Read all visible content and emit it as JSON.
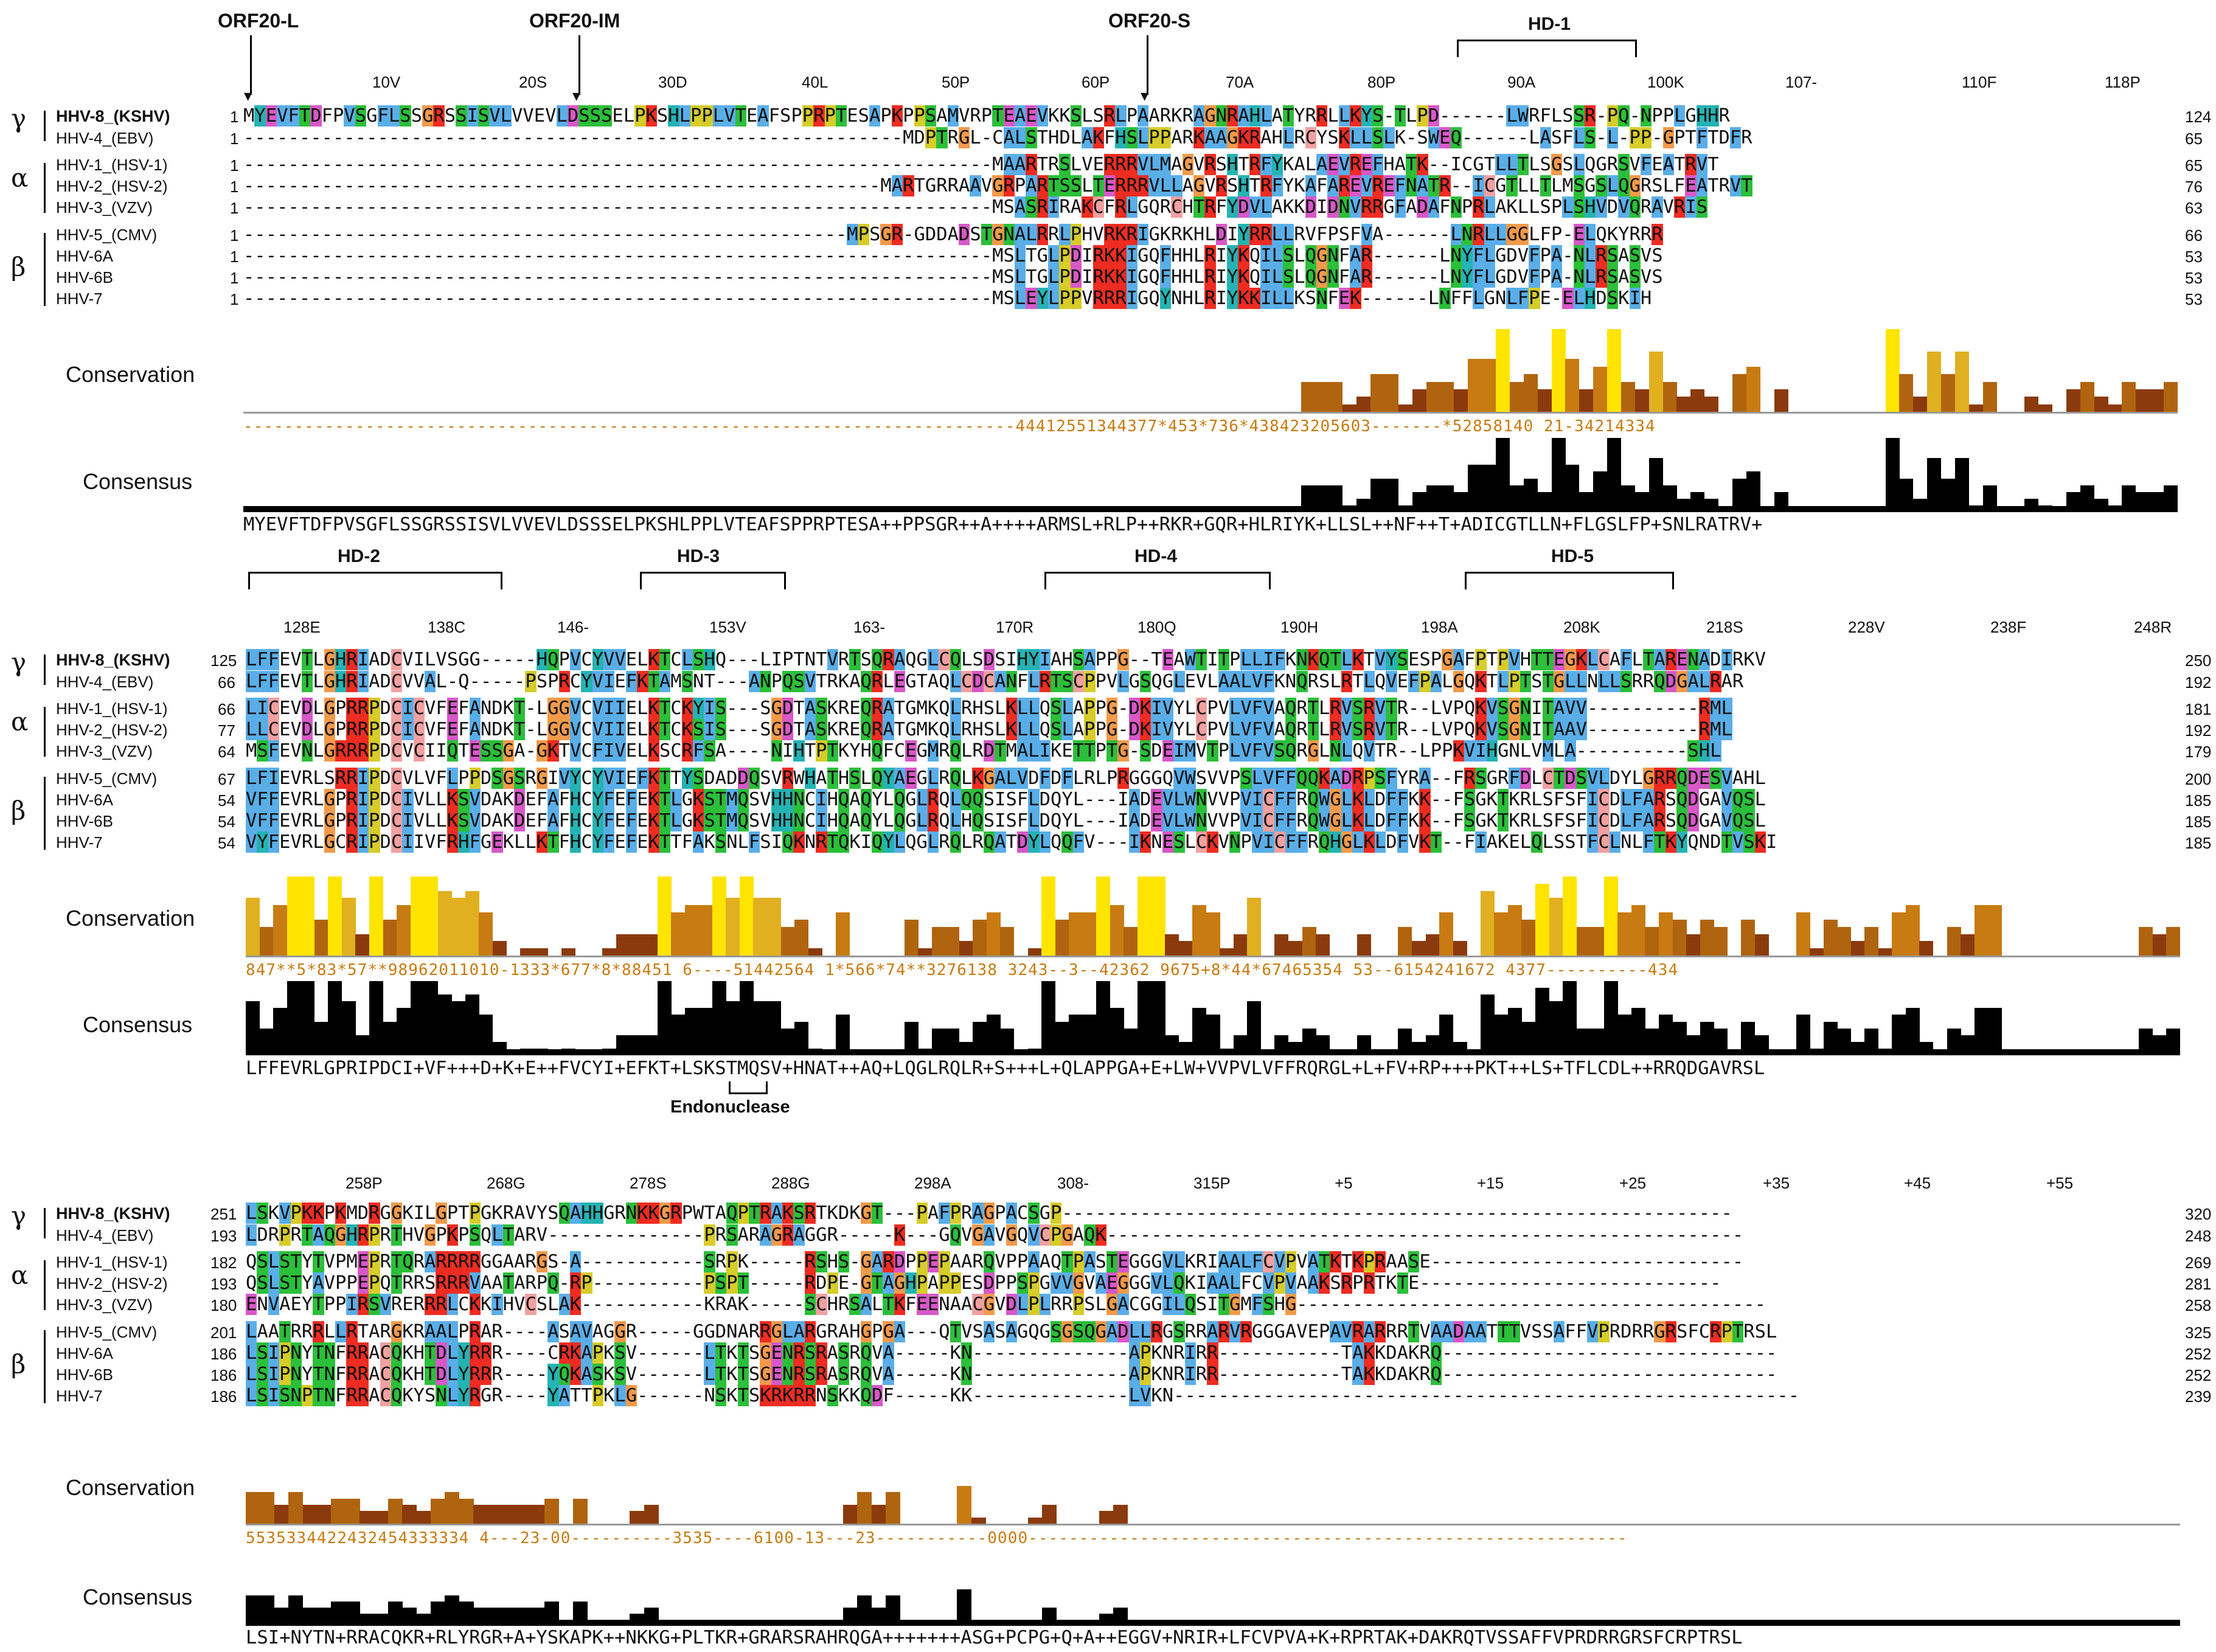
{
  "orf_markers": [
    "ORF20-L",
    "ORF20-IM",
    "ORF20-S"
  ],
  "row_labels": {
    "conservation": "Conservation",
    "consensus": "Consensus"
  },
  "groups": {
    "gamma": "γ",
    "alpha": "α",
    "beta": "β"
  },
  "taxa": [
    "HHV-8_(KSHV)",
    "HHV-4_(EBV)",
    "HHV-1_(HSV-1)",
    "HHV-2_(HSV-2)",
    "HHV-3_(VZV)",
    "HHV-5_(CMV)",
    "HHV-6A",
    "HHV-6B",
    "HHV-7"
  ],
  "endonuclease_label": "Endonuclease",
  "colors": {
    "blue": "#5aaee8",
    "red": "#ee2c22",
    "green": "#2bbf3a",
    "orange": "#f29a4a",
    "yellow": "#d6cc2a",
    "magenta": "#d858c8",
    "cyan": "#25b3b3",
    "pink": "#f2a0a0",
    "cons_gold": "#c77b12",
    "cons_brown": "#8b3a0d",
    "cons_yellow": "#ffe400"
  },
  "panels": [
    {
      "ruler": [
        "10V",
        "20S",
        "30D",
        "40L",
        "50P",
        "60P",
        "70A",
        "80P",
        "90A",
        "100K",
        "107-",
        "110F",
        "118P"
      ],
      "regions": [
        "HD-1"
      ],
      "starts": [
        "1",
        "1",
        "1",
        "1",
        "1",
        "1",
        "1",
        "1",
        "1"
      ],
      "ends": [
        "124",
        "65",
        "65",
        "76",
        "63",
        "66",
        "53",
        "53",
        "53"
      ],
      "sequences": [
        "MYEVFTDFPVSGFLSSGRSSISVLVVEVLDSSSELPKSHLPPLVTEAFSPPRPTESAPKPPSAMVRPTEAEVKKSLSRLPAARKRAGNRAHLATYRRLLKYS-TLPD------LWRFLSSR-PQ-NPPLGHHR",
        "-----------------------------------------------------------MDPTRGL-CALSTHDLAKFHSLPPARKAAGKRAHLRCYSKLLSLK-SWEQ------LASFLS-L-PP-GPTFTDFR",
        "-------------------------------------------------------------------MAARTRSLVERRRVLMAGVRSHTRFYKALAEVREFHATK--ICGTLLTLSGSLQGRSVFEATRVT",
        "---------------------------------------------------------MARTGRRAAVGRPARTSSLTERRRVLLAGVRSHTRFYKAFAREVREFNATR--ICGTLLTLMSGSLQGRSLFEATRVT",
        "-------------------------------------------------------------------MSASRIRAKCFRLGQRCHTRFYDVLAKKDIDNVRRGFADAFNPRLAKLLSPLSHVDVQRAVRIS",
        "------------------------------------------------------MPSGR-GDDADSTGNALRRLPHVRKRIGKRKHLDIYRRLLRVFPSFVA------LNRLLGGLFP-ELQKYRRR",
        "-------------------------------------------------------------------MSLTGLPDIRKKIGQFHHLRIYKQILSLQGNFAR------LNYFLGDVFPA-NLRSASVS",
        "-------------------------------------------------------------------MSLTGLPDIRKKIGQFHHLRIYKQILSLQGNFAR------LNYFLGDVFPA-NLRSASVS",
        "-------------------------------------------------------------------MSLEYLPPVRRRIGQYNHLRIYKKILLKSNFEK------LNFFLGNLFPE-ELHDSKIH"
      ],
      "scores": "----------------------------------------------------------------------------44412551344377*453*736*438423205603-------*52858140 21-34214334",
      "consensus_seq": "MYEVFTDFPVSGFLSSGRSSISVLVVEVLDSSSELPKSHLPPLVTEAFSPPRPTESA++PPSGR++A++++ARMSL+RLP++RKR+GQR+HLRIYK+LLSL++NF++T+ADICGTLLN+FLGSLFP+SNLRATRV+"
    },
    {
      "ruler": [
        "128E",
        "138C",
        "146-",
        "153V",
        "163-",
        "170R",
        "180Q",
        "190H",
        "198A",
        "208K",
        "218S",
        "228V",
        "238F",
        "248R"
      ],
      "regions": [
        "HD-2",
        "HD-3",
        "HD-4",
        "HD-5"
      ],
      "starts": [
        "125",
        "66",
        "66",
        "77",
        "64",
        "67",
        "54",
        "54",
        "54"
      ],
      "ends": [
        "250",
        "192",
        "181",
        "192",
        "179",
        "200",
        "185",
        "185",
        "185"
      ],
      "sequences": [
        "LFFEVTLGHRIADCVILVSGG-----HQPVCYVVELKTCLSHQ---LIPTNTVRTSQRAQGLCQLSDSIHYIAHSAPPG--TEAWTITPLLIFKNKQTLKTVYSESPGAFPTPVHTTEGKLCAFLTARENADIRKV",
        "LFFEVTLGHRIADCVVAL-Q-----PSPRCYVIEFKTAMSNT---ANPQSVTRKAQRLEGTAQLCDCANFLRTSCPPVLGSQGLEVLAALVFKNQRSLRTLQVEFPALGQKTLPTSTGLLNLLSRRQDGALRAR",
        "LICEVDLGPRRPDCICVFEFANDKT-LGGVCVIIELKTCKYIS---SGDTASKREQRATGMKQLRHSLKLLQSLAPPG-DKIVYLCPVLVFVAQRTLRVSRVTR--LVPQKVSGNITAVV----------RML",
        "LLCEVDLGPRRPDCICVFEFANDKT-LGGVCVIIELKTCKSIS---SGDTASKREQRATGMKQLRHSLKLLQSLAPPG-DKIVYLCPVLVFVAQRTLRVSRVTR--LVPQKVSGNITAAV----------RML",
        "MSFEVNLGRRRPDCVCIIQTESSGA-GKTVCFIVELKSCRFSA----NIHTPTKYHQFCEGMRQLRDTMALIKETTPTG-SDEIMVTPLVFVSQRGLNLQVTR--LPPKVIHGNLVMLA----------SHL",
        "LFIEVRLSRRIPDCVLVFLPPDSGSRGIVYCYVIEFKTTYSDADDQSVRWHATHSLQYAEGLRQLKGALVDFDFLRLPRGGGQVWSVVPSLVFFQQKADRPSFYRA--FRSGRFDLCTDSVLDYLGRRQDESVAHL",
        "VFFEVRLGPRIPDCIVLLKSVDAKDEFAFHCYFEFEKTLGKSTMQSVHHNCIHQAQYLQGLRQLQQSISFLDQYL---IADEVLWNVVPVICFFRQWGLKLDFFKK--FSGKTKRLSFSFICDLFARSQDGAVQSL",
        "VFFEVRLGPRIPDCIVLLKSVDAKDEFAFHCYFEFEKTLGKSTMQSVHHNCIHQAQYLQGLRQLHQSISFLDQYL---IADEVLWNVVPVICFFRQWGLKLDFFKK--FSGKTKRLSFSFICDLFARSQDGAVQSL",
        "VYFEVRLGCRIPDCIIVFRHFGEKLLKTFHCYFEFEKTTFAKSNLFSIQKNRTQKIQYLQGLRQLRQATDYLQQFV---IKNESLCKVNPVICFFRQHGLKLDFVKT--FIAKELQLSSTFCLNLFTKYQNDTVSKI"
      ],
      "scores": "847**5*83*57**98962011010-1333*677*8*88451 6----51442564 1*566*74**3276138 3243--3--42362 9675+8*44*67465354 53--6154241672 4377----------434",
      "consensus_seq": "LFFEVRLGPRIPDCI+VF+++D+K+E++FVCYI+EFKT+LSKSTMQSV+HNAT++AQ+LQGLRQLR+S+++L+QLAPPGA+E+LW+VVPVLVFFRQRGL+L+FV+RP+++PKT++LS+TFLCDL++RRQDGAVRSL"
    },
    {
      "ruler": [
        "258P",
        "268G",
        "278S",
        "288G",
        "298A",
        "308-",
        "315P",
        "+5",
        "+15",
        "+25",
        "+35",
        "+45",
        "+55"
      ],
      "regions": [],
      "starts": [
        "251",
        "193",
        "182",
        "193",
        "180",
        "201",
        "186",
        "186",
        "186"
      ],
      "ends": [
        "320",
        "248",
        "269",
        "281",
        "258",
        "325",
        "252",
        "252",
        "239"
      ],
      "sequences": [
        "LSKVPKKPKMDRGGKILGPTPGKRAVYSQAHHGRNKKGRPWTAQPTRAKSRTKDKGT---PAFPRAGPACSGP------------------------------------------------------------",
        "LDRPRTAQGHRPRTHVGPKPSQLTARV--------------PRSARAGRAGGR-----K---GQVGAVGQVCPGAQK---------------------------------------------------------",
        "QSLSTYTVPMEPRTQRARRRRGGAARGS-A-----------SRPK-----RSHS-GARDPPEPAARQVPPAAQTPASTEGGGVLKRIAALFCVPVATKTKPRAASE----------------------------",
        "QSLSTYAVPPEPQTRRSRRRVAATARPQ-RP----------PSPT-----RDPE-GTAGHPAPPESDPPSPGVVGVAEGGGVLQKIAALFCVPVAAKSRPRTKTE---------------------------",
        "ENVAEYTPPIRSVRERRRLCKKIHVCSLAK-----------KRAK-----SCHRSALTKFEENAACGVDLPLRRPSLGACGGILQSITGMFSHG------------------------------------------",
        "LAATRRRLLRTARGKRAALPRAR----ASAVAGGR-----GGDNARRGLARGRAHGPGA---QTVSASAGQGSGSQGADLLRGSRRARVRGGGAVEPAVRARRRTVAADAATTTVSSAFFVPRDRRGRSFCRPTRSL",
        "LSIPNYTNFRRACQKHTDLYRRR----CRKAPKSV------LTKTSGENRSRASRQVA-----KN--------------APKNRIRR-----------TAKKDAKRQ------------------------------",
        "LSIPNYTNFRRACQKHTDLYRRR----YQKASKSV------LTKTSGENRSRASRQVA-----KN--------------APKNRIRR-----------TAKKDAKRQ------------------------------",
        "LSISNPTNFRRACQKYSNLYRGR----YATTPKLG------NSKTSKRKRRNSKKQDF-----KK--------------LVKN--------------------------------------------------------"
      ],
      "scores": "5535334422432454333334 4---23-00----------3535----6100-13---23-----------0000-----------------------------------------------------------",
      "consensus_seq": "LSI+NYTN+RRACQKR+RLYRGR+A+YSKAPK++NKKG+PLTKR+GRARSRAHRQGA+++++++ASG+PCPG+Q+A++EGGV+NRIR+LFCVPVA+K+RPRTAK+DAKRQTVSSAFFVPRDRRGRSFCRPTRSL"
    }
  ]
}
